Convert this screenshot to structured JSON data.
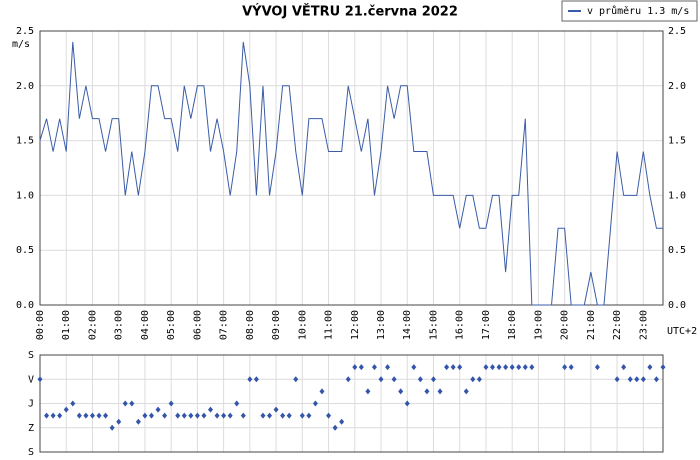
{
  "chart_data": [
    {
      "type": "line",
      "title": "VÝVOJ VĚTRU  21.června 2022",
      "y_label": "m/s",
      "x_note": "UTC+2",
      "legend": "top-right",
      "grid": true,
      "x": [
        0,
        0.25,
        0.5,
        0.75,
        1,
        1.25,
        1.5,
        1.75,
        2,
        2.25,
        2.5,
        2.75,
        3,
        3.25,
        3.5,
        3.75,
        4,
        4.25,
        4.5,
        4.75,
        5,
        5.25,
        5.5,
        5.75,
        6,
        6.25,
        6.5,
        6.75,
        7,
        7.25,
        7.5,
        7.75,
        8,
        8.25,
        8.5,
        8.75,
        9,
        9.25,
        9.5,
        9.75,
        10,
        10.25,
        10.5,
        10.75,
        11,
        11.25,
        11.5,
        11.75,
        12,
        12.25,
        12.5,
        12.75,
        13,
        13.25,
        13.5,
        13.75,
        14,
        14.25,
        14.5,
        14.75,
        15,
        15.25,
        15.5,
        15.75,
        16,
        16.25,
        16.5,
        16.75,
        17,
        17.25,
        17.5,
        17.75,
        18,
        18.25,
        18.5,
        18.75,
        19,
        19.25,
        19.5,
        19.75,
        20,
        20.25,
        20.5,
        20.75,
        21,
        21.25,
        21.5,
        21.75,
        22,
        22.25,
        22.5,
        22.75,
        23,
        23.25,
        23.5,
        23.75
      ],
      "series": [
        {
          "name": "v průměru 1.3 m/s",
          "color": "#3a5ca8",
          "values": [
            1.5,
            1.7,
            1.4,
            1.7,
            1.4,
            2.4,
            1.7,
            2.0,
            1.7,
            1.7,
            1.4,
            1.7,
            1.7,
            1.0,
            1.4,
            1.0,
            1.4,
            2.0,
            2.0,
            1.7,
            1.7,
            1.4,
            2.0,
            1.7,
            2.0,
            2.0,
            1.4,
            1.7,
            1.4,
            1.0,
            1.4,
            2.4,
            2.0,
            1.0,
            2.0,
            1.0,
            1.4,
            2.0,
            2.0,
            1.4,
            1.0,
            1.7,
            1.7,
            1.7,
            1.4,
            1.4,
            1.4,
            2.0,
            1.7,
            1.4,
            1.7,
            1.0,
            1.4,
            2.0,
            1.7,
            2.0,
            2.0,
            1.4,
            1.4,
            1.4,
            1.0,
            1.0,
            1.0,
            1.0,
            0.7,
            1.0,
            1.0,
            0.7,
            0.7,
            1.0,
            1.0,
            0.3,
            1.0,
            1.0,
            1.7,
            0.0,
            0.0,
            0.0,
            0.0,
            0.7,
            0.7,
            0.0,
            0.0,
            0.0,
            0.3,
            0.0,
            0.0,
            0.7,
            1.4,
            1.0,
            1.0,
            1.0,
            1.4,
            1.0,
            0.7,
            0.7
          ]
        }
      ],
      "xlim": [
        0,
        23.75
      ],
      "xticks": [
        {
          "value": 0,
          "label": "00:00"
        },
        {
          "value": 1,
          "label": "01:00"
        },
        {
          "value": 2,
          "label": "02:00"
        },
        {
          "value": 3,
          "label": "03:00"
        },
        {
          "value": 4,
          "label": "04:00"
        },
        {
          "value": 5,
          "label": "05:00"
        },
        {
          "value": 6,
          "label": "06:00"
        },
        {
          "value": 7,
          "label": "07:00"
        },
        {
          "value": 8,
          "label": "08:00"
        },
        {
          "value": 9,
          "label": "09:00"
        },
        {
          "value": 10,
          "label": "10:00"
        },
        {
          "value": 11,
          "label": "11:00"
        },
        {
          "value": 12,
          "label": "12:00"
        },
        {
          "value": 13,
          "label": "13:00"
        },
        {
          "value": 14,
          "label": "14:00"
        },
        {
          "value": 15,
          "label": "15:00"
        },
        {
          "value": 16,
          "label": "16:00"
        },
        {
          "value": 17,
          "label": "17:00"
        },
        {
          "value": 18,
          "label": "18:00"
        },
        {
          "value": 19,
          "label": "19:00"
        },
        {
          "value": 20,
          "label": "20:00"
        },
        {
          "value": 21,
          "label": "21:00"
        },
        {
          "value": 22,
          "label": "22:00"
        },
        {
          "value": 23,
          "label": "23:00"
        }
      ],
      "ylim": [
        0,
        2.5
      ],
      "yticks": [
        {
          "value": 0,
          "label": "0.0"
        },
        0.5,
        {
          "value": 1,
          "label": "1.0"
        },
        1.5,
        {
          "value": 2,
          "label": "2.0"
        },
        2.5
      ]
    },
    {
      "type": "scatter",
      "color": "#3355aa",
      "grid": true,
      "x": [
        0,
        0.25,
        0.5,
        0.75,
        1,
        1.25,
        1.5,
        1.75,
        2,
        2.25,
        2.5,
        2.75,
        3,
        3.25,
        3.5,
        3.75,
        4,
        4.25,
        4.5,
        4.75,
        5,
        5.25,
        5.5,
        5.75,
        6,
        6.25,
        6.5,
        6.75,
        7,
        7.25,
        7.5,
        7.75,
        8,
        8.25,
        8.5,
        8.75,
        9,
        9.25,
        9.5,
        9.75,
        10,
        10.25,
        10.5,
        10.75,
        11,
        11.25,
        11.5,
        11.75,
        12,
        12.25,
        12.5,
        12.75,
        13,
        13.25,
        13.5,
        13.75,
        14,
        14.25,
        14.5,
        14.75,
        15,
        15.25,
        15.5,
        15.75,
        16,
        16.25,
        16.5,
        16.75,
        17,
        17.25,
        17.5,
        17.75,
        18,
        18.25,
        18.5,
        18.75,
        19,
        19.25,
        19.5,
        19.75,
        20,
        20.25,
        20.5,
        20.75,
        21,
        21.25,
        21.5,
        21.75,
        22,
        22.25,
        22.5,
        22.75,
        23,
        23.25,
        23.5,
        23.75
      ],
      "values": [
        90,
        225,
        225,
        225,
        202.5,
        180,
        225,
        225,
        225,
        225,
        225,
        270,
        247.5,
        180,
        180,
        247.5,
        225,
        225,
        202.5,
        225,
        180,
        225,
        225,
        225,
        225,
        225,
        202.5,
        225,
        225,
        225,
        180,
        225,
        90,
        90,
        225,
        225,
        202.5,
        225,
        225,
        90,
        225,
        225,
        180,
        135,
        225,
        270,
        247.5,
        90,
        45,
        45,
        135,
        45,
        90,
        45,
        90,
        135,
        180,
        45,
        90,
        135,
        90,
        135,
        45,
        45,
        45,
        135,
        90,
        90,
        45,
        45,
        45,
        45,
        45,
        45,
        45,
        45,
        null,
        null,
        null,
        null,
        45,
        45,
        null,
        null,
        null,
        45,
        null,
        null,
        90,
        45,
        90,
        90,
        90,
        45,
        90,
        45
      ],
      "xlim": [
        0,
        23.75
      ],
      "ylim": [
        360,
        0
      ],
      "yticks": [
        {
          "value": 0,
          "label": "S"
        },
        {
          "value": 90,
          "label": "V"
        },
        {
          "value": 180,
          "label": "J"
        },
        {
          "value": 270,
          "label": "Z"
        },
        {
          "value": 360,
          "label": "S"
        }
      ]
    }
  ]
}
